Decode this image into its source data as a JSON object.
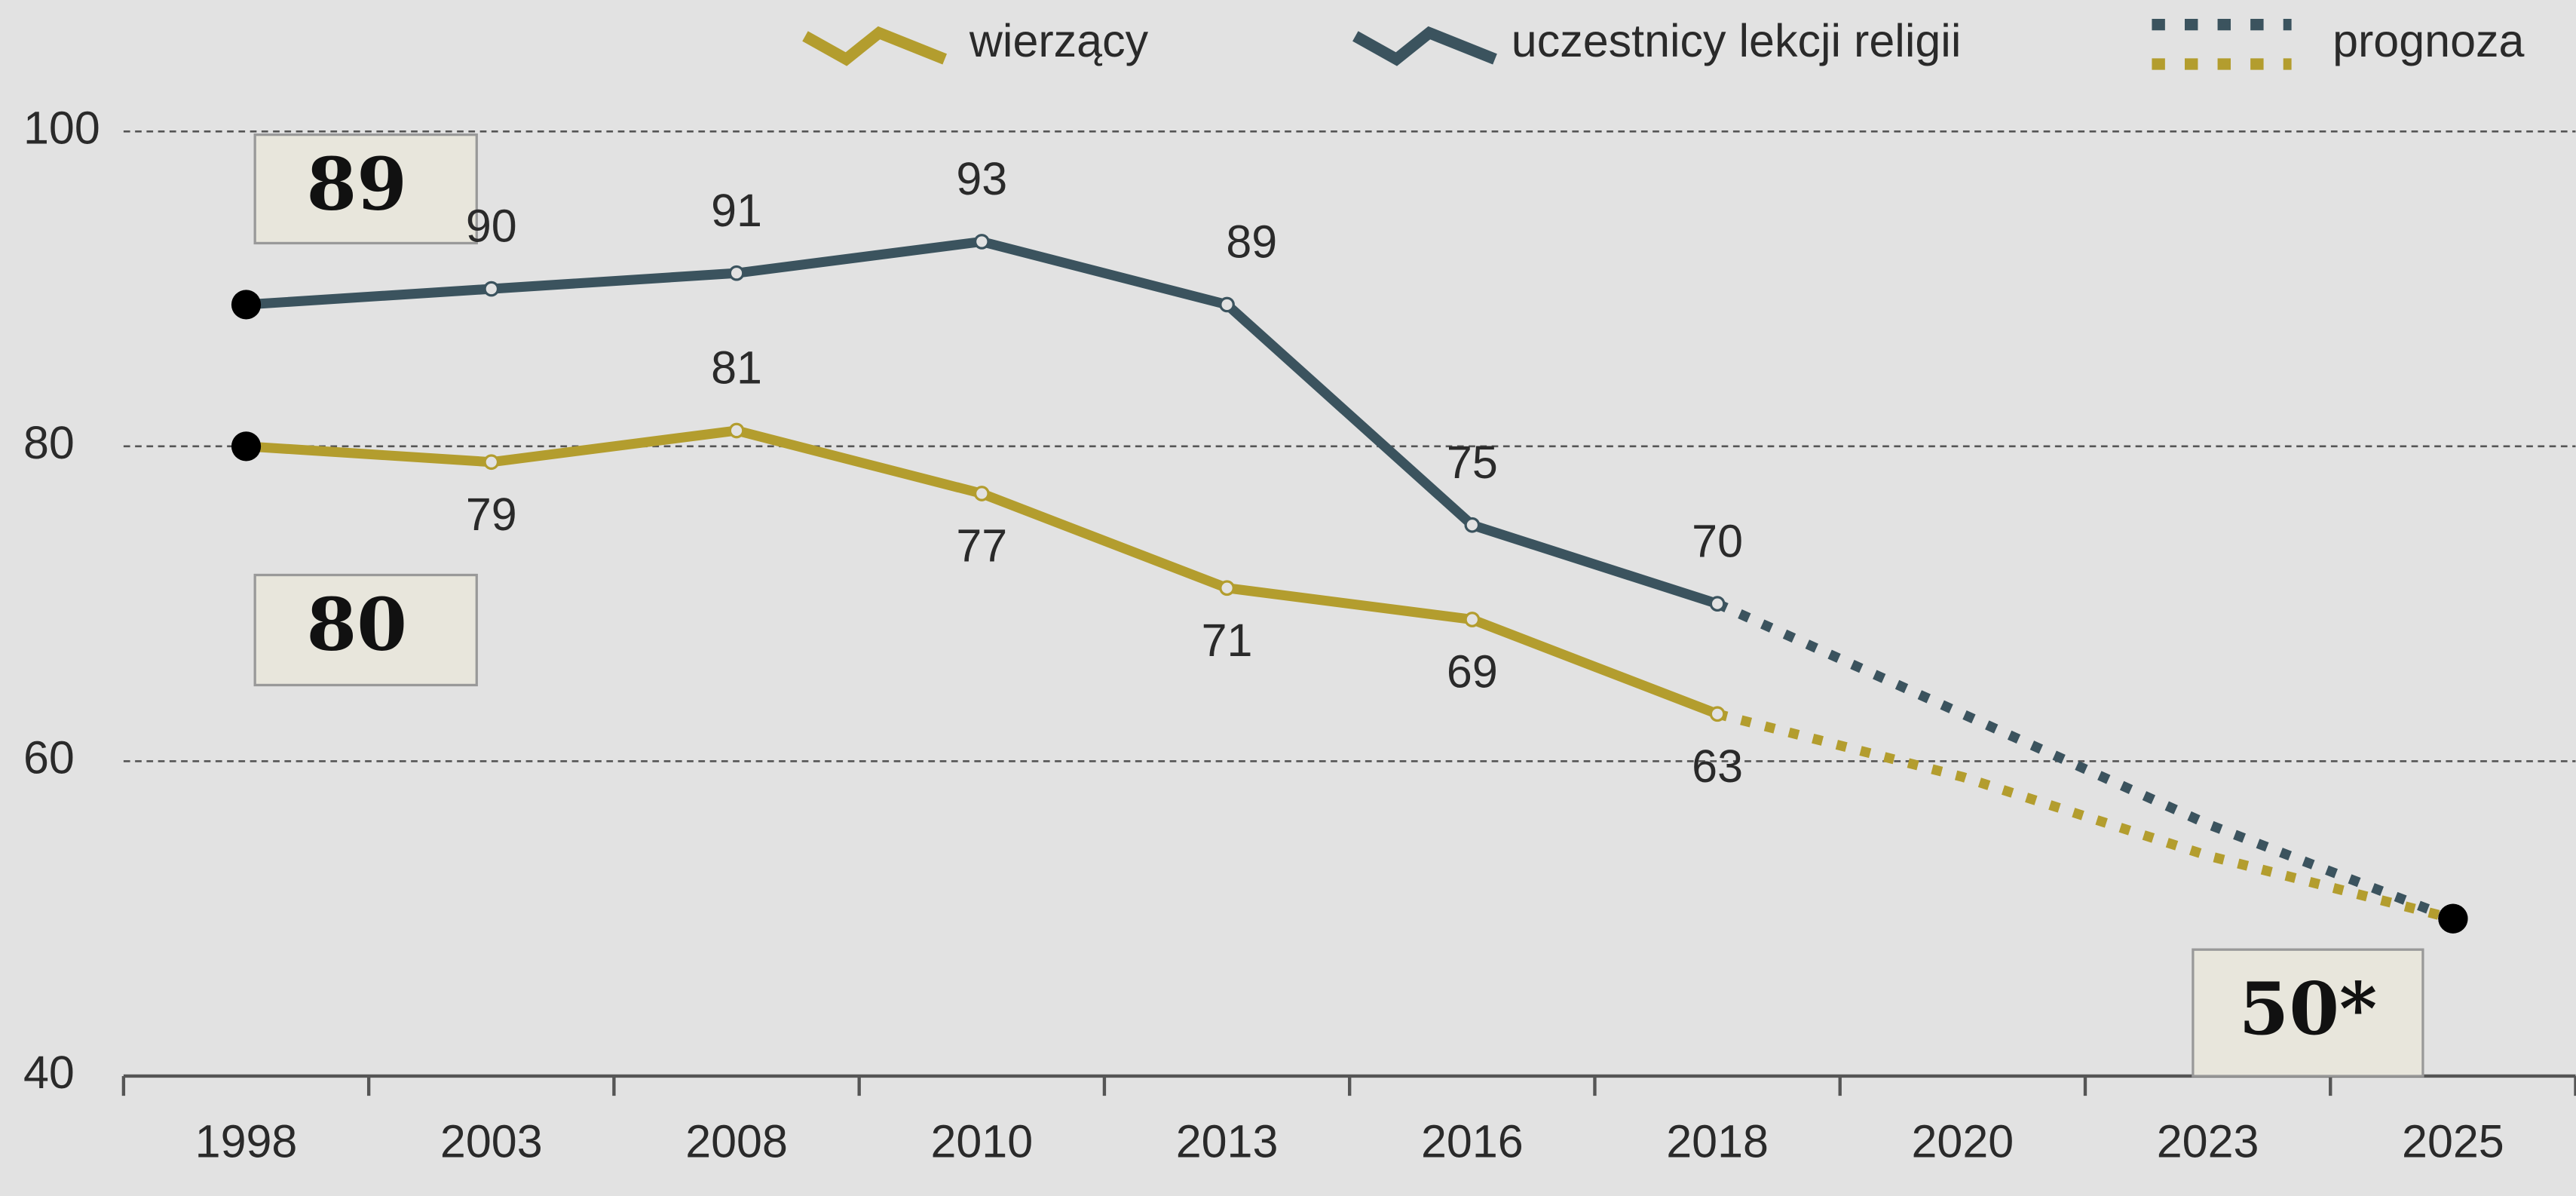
{
  "chart_data": {
    "type": "line",
    "categories": [
      "1998",
      "2003",
      "2008",
      "2010",
      "2013",
      "2016",
      "2018",
      "2020",
      "2023",
      "2025"
    ],
    "series": [
      {
        "name": "wierzący",
        "color": "#b39d2e",
        "values": [
          80,
          79,
          81,
          77,
          71,
          69,
          63,
          null,
          null,
          null
        ],
        "forecast": [
          null,
          null,
          null,
          null,
          null,
          null,
          63,
          59,
          54,
          50
        ]
      },
      {
        "name": "uczestnicy lekcji religii",
        "color": "#3b535e",
        "values": [
          89,
          90,
          91,
          93,
          89,
          75,
          70,
          null,
          null,
          null
        ],
        "forecast": [
          null,
          null,
          null,
          null,
          null,
          null,
          70,
          63,
          56,
          50
        ]
      }
    ],
    "forecast_label": "prognoza",
    "annotations": [
      {
        "text": "50*"
      }
    ],
    "ylim": [
      40,
      100
    ],
    "yticks": [
      40,
      60,
      80,
      100
    ],
    "grid": true
  }
}
